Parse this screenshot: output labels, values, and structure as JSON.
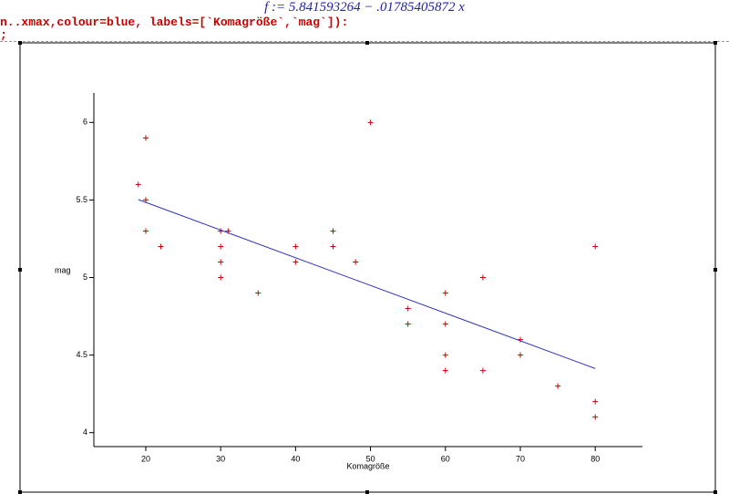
{
  "header": {
    "formula": "f := 5.841593264 − .01785405872 x",
    "input_lines": [
      "n..xmax,colour=blue, labels=[`Komagröße`,`mag`]):",
      ";"
    ]
  },
  "chart_data": {
    "type": "scatter",
    "xlabel": "Komagröße",
    "ylabel": "mag",
    "xlim": [
      13.07,
      86.3
    ],
    "ylim": [
      3.91,
      6.19
    ],
    "xticks": [
      20,
      30,
      40,
      50,
      60,
      70,
      80
    ],
    "yticks": [
      4,
      4.5,
      5,
      5.5,
      6
    ],
    "series": [
      {
        "mode": "markers",
        "color": "#cc0000",
        "x": [
          19,
          20,
          20,
          20,
          22,
          30,
          30,
          30,
          30,
          31,
          35,
          40,
          40,
          45,
          45,
          48,
          50,
          55,
          55,
          60,
          60,
          60,
          60,
          65,
          65,
          70,
          70,
          75,
          80,
          80,
          80
        ],
        "y": [
          5.6,
          5.9,
          5.5,
          5.3,
          5.2,
          5.3,
          5.2,
          5.1,
          5.0,
          5.3,
          4.9,
          5.2,
          5.1,
          5.3,
          5.2,
          5.1,
          6.0,
          4.8,
          4.7,
          4.9,
          4.7,
          4.5,
          4.4,
          5.0,
          4.4,
          4.6,
          4.5,
          4.3,
          5.2,
          4.2,
          4.1
        ]
      },
      {
        "mode": "line",
        "color": "#3333bb",
        "x": [
          19,
          80
        ],
        "y": [
          5.502366,
          4.413268
        ]
      }
    ]
  }
}
